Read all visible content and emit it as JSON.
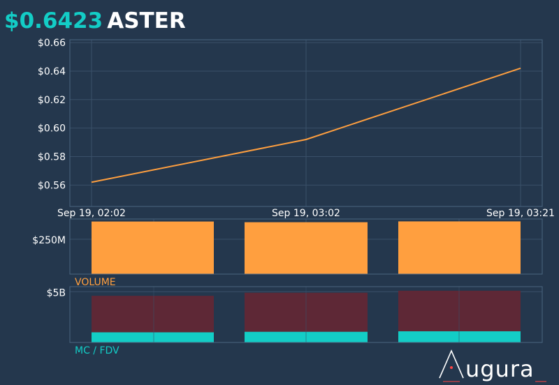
{
  "header": {
    "price": "$0.6423",
    "ticker": "ASTER"
  },
  "colors": {
    "background": "#24374d",
    "grid": "#3a5069",
    "line": "#ff9f3f",
    "volume": "#ff9f3f",
    "mc": "#13cdc6",
    "fdv": "#5e2836",
    "logo_accent": "#ff4444"
  },
  "logo": {
    "text": "ugura"
  },
  "chart_data": [
    {
      "type": "line",
      "x": [
        "Sep 19, 02:02",
        "Sep 19, 03:02",
        "Sep 19, 03:21"
      ],
      "series": [
        {
          "values": [
            0.562,
            0.592,
            0.642
          ]
        }
      ],
      "ylim": [
        0.545,
        0.662
      ],
      "yticks": [
        0.56,
        0.58,
        0.6,
        0.62,
        0.64,
        0.66
      ],
      "ytick_labels": [
        "$0.56",
        "$0.58",
        "$0.60",
        "$0.62",
        "$0.64",
        "$0.66"
      ],
      "grid": true
    },
    {
      "type": "bar",
      "label": "VOLUME",
      "values": [
        377,
        372,
        378
      ],
      "unit": "M",
      "ylim": [
        0,
        395
      ],
      "yticks": [
        250
      ],
      "ytick_labels": [
        "$250M"
      ]
    },
    {
      "type": "bar",
      "label": "MC / FDV",
      "series": [
        {
          "name": "MC",
          "values": [
            1.0,
            1.05,
            1.1
          ]
        },
        {
          "name": "FDV",
          "values": [
            4.6,
            4.9,
            5.1
          ]
        }
      ],
      "unit": "B",
      "ylim": [
        0,
        5.5
      ],
      "yticks": [
        5
      ],
      "ytick_labels": [
        "$5B"
      ]
    }
  ]
}
